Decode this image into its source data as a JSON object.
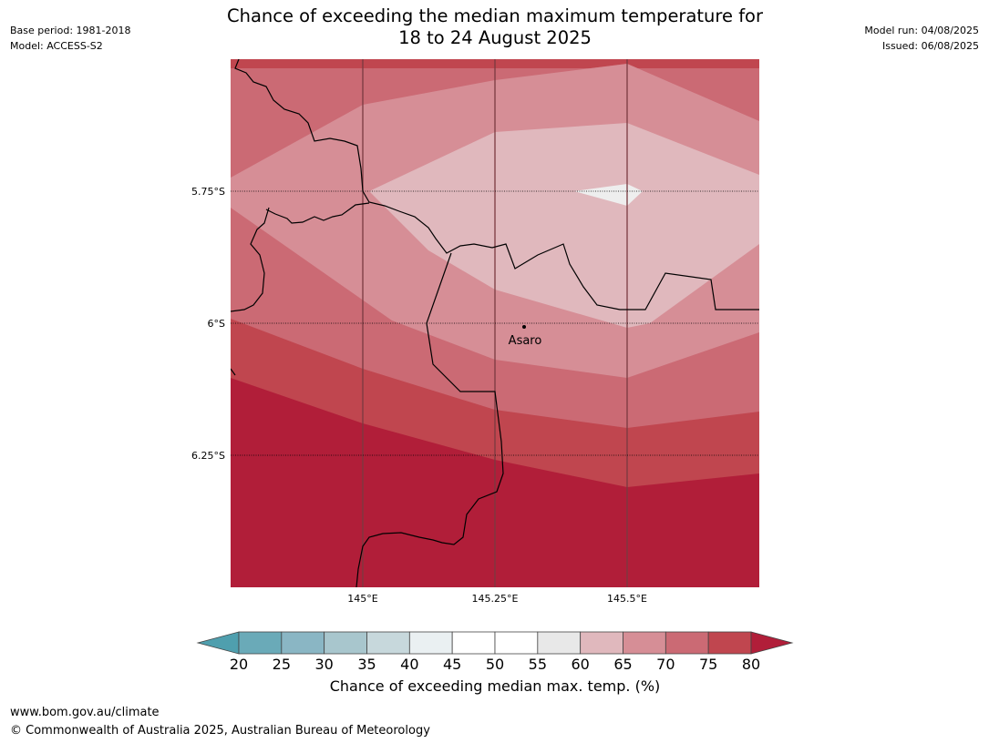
{
  "header": {
    "title_line1": "Chance of exceeding the median maximum temperature for",
    "title_line2": "18 to 24 August 2025",
    "base_period": "Base period: 1981-2018",
    "model": "Model: ACCESS-S2",
    "model_run": "Model run: 04/08/2025",
    "issued": "Issued: 06/08/2025"
  },
  "map": {
    "lat_labels": [
      "5.75°S",
      "6°S",
      "6.25°S"
    ],
    "lon_labels": [
      "145°E",
      "145.25°E",
      "145.5°E"
    ],
    "place": {
      "name": "Asaro"
    }
  },
  "legend": {
    "title": "Chance of exceeding median max. temp. (%)",
    "ticks": [
      "20",
      "25",
      "30",
      "35",
      "40",
      "45",
      "50",
      "55",
      "60",
      "65",
      "70",
      "75",
      "80"
    ],
    "colors": [
      "#6aaab8",
      "#8ab6c4",
      "#a8c6cd",
      "#c7d8dc",
      "#eaf0f2",
      "#ffffff",
      "#ffffff",
      "#e8e8e8",
      "#e0b8bd",
      "#d68e96",
      "#cb6a74",
      "#c0464f",
      "#b11e39"
    ],
    "below_color": "#4f9fae",
    "above_color": "#b11e39"
  },
  "footer": {
    "url": "www.bom.gov.au/climate",
    "copyright": "© Commonwealth of Australia 2025, Australian Bureau of Meteorology"
  }
}
